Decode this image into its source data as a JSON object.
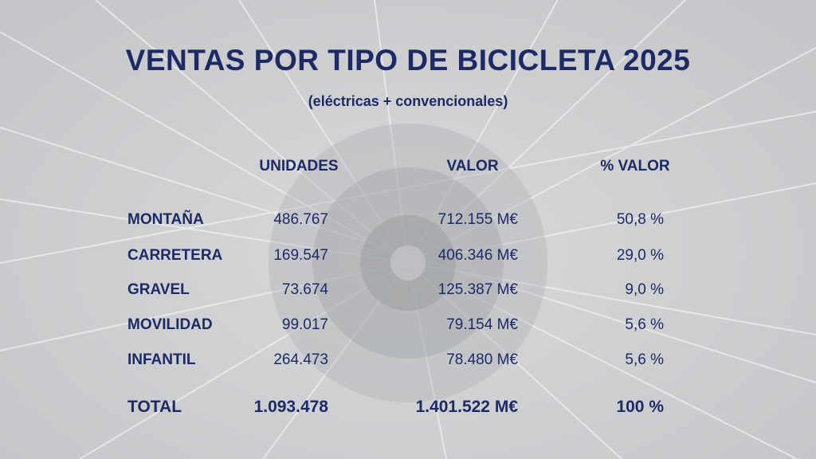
{
  "header": {
    "title": "VENTAS POR TIPO DE BICICLETA 2025",
    "subtitle": "(eléctricas + convencionales)"
  },
  "table": {
    "columns": [
      "UNIDADES",
      "VALOR",
      "% VALOR"
    ],
    "rows": [
      [
        "MONTAÑA",
        "486.767",
        "712.155 M€",
        "50,8 %"
      ],
      [
        "CARRETERA",
        "169.547",
        "406.346 M€",
        "29,0 %"
      ],
      [
        "GRAVEL",
        "73.674",
        "125.387 M€",
        "9,0 %"
      ],
      [
        "MOVILIDAD",
        "99.017",
        "79.154 M€",
        "5,6 %"
      ],
      [
        "INFANTIL",
        "264.473",
        "78.480 M€",
        "5,6 %"
      ]
    ],
    "total": [
      "TOTAL",
      "1.093.478",
      "1.401.522 M€",
      "100 %"
    ]
  }
}
